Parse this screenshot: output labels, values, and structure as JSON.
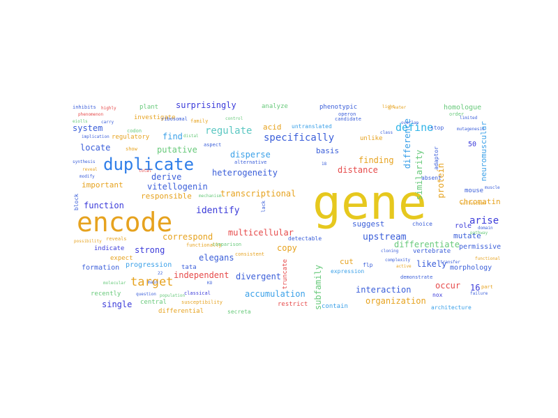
{
  "words": [
    {
      "t": "gene",
      "c": "#e6c81e"
    },
    {
      "t": "encode",
      "c": "#e6a21e"
    },
    {
      "t": "duplicate",
      "c": "#2f7ee8"
    },
    {
      "t": "target",
      "c": "#e6a21e"
    },
    {
      "t": "define",
      "c": "#2fb4e8"
    },
    {
      "t": "specifically",
      "c": "#3a5ed9"
    },
    {
      "t": "regulate",
      "c": "#5bc7c2"
    },
    {
      "t": "surprisingly",
      "c": "#3a3ad9"
    },
    {
      "t": "system",
      "c": "#3a5ed9"
    },
    {
      "t": "locate",
      "c": "#3a5ed9"
    },
    {
      "t": "putative",
      "c": "#67c97a"
    },
    {
      "t": "disperse",
      "c": "#3aa0e8"
    },
    {
      "t": "vitellogenin",
      "c": "#3a5ed9"
    },
    {
      "t": "heterogeneity",
      "c": "#3a5ed9"
    },
    {
      "t": "identify",
      "c": "#3a3ad9"
    },
    {
      "t": "transcriptional",
      "c": "#e6a21e"
    },
    {
      "t": "responsible",
      "c": "#e6a21e"
    },
    {
      "t": "function",
      "c": "#3a3ad9"
    },
    {
      "t": "correspond",
      "c": "#e6a21e"
    },
    {
      "t": "multicellular",
      "c": "#e64a4a"
    },
    {
      "t": "upstream",
      "c": "#3a5ed9"
    },
    {
      "t": "differentiate",
      "c": "#67c97a"
    },
    {
      "t": "strong",
      "c": "#3a3ad9"
    },
    {
      "t": "elegans",
      "c": "#3a5ed9"
    },
    {
      "t": "independent",
      "c": "#e64a4a"
    },
    {
      "t": "divergent",
      "c": "#3a5ed9"
    },
    {
      "t": "accumulation",
      "c": "#3aa0e8"
    },
    {
      "t": "interaction",
      "c": "#3a5ed9"
    },
    {
      "t": "organization",
      "c": "#e6a21e"
    },
    {
      "t": "single",
      "c": "#3a3ad9"
    },
    {
      "t": "occur",
      "c": "#e64a4a"
    },
    {
      "t": "arise",
      "c": "#3a3ad9"
    },
    {
      "t": "likely",
      "c": "#3a5ed9"
    },
    {
      "t": "distance",
      "c": "#e64a4a"
    },
    {
      "t": "finding",
      "c": "#e6a21e"
    },
    {
      "t": "basis",
      "c": "#3a5ed9"
    },
    {
      "t": "derive",
      "c": "#3a5ed9"
    },
    {
      "t": "important",
      "c": "#e6a21e"
    },
    {
      "t": "find",
      "c": "#3aa0e8"
    },
    {
      "t": "acid",
      "c": "#e6a21e"
    },
    {
      "t": "copy",
      "c": "#e6a21e"
    },
    {
      "t": "cut",
      "c": "#e6a21e"
    },
    {
      "t": "suggest",
      "c": "#3a5ed9"
    },
    {
      "t": "subfamily",
      "c": "#67c97a"
    },
    {
      "t": "similarity",
      "c": "#67c97a"
    },
    {
      "t": "difference",
      "c": "#3aa0e8"
    },
    {
      "t": "protein",
      "c": "#e6a21e"
    },
    {
      "t": "chromatin",
      "c": "#e6a21e"
    },
    {
      "t": "neuromuscular",
      "c": "#3aa0e8"
    },
    {
      "t": "homologue",
      "c": "#67c97a"
    },
    {
      "t": "mutate",
      "c": "#3a5ed9"
    },
    {
      "t": "role",
      "c": "#3a3ad9"
    },
    {
      "t": "permissive",
      "c": "#3a5ed9"
    },
    {
      "t": "morphology",
      "c": "#3a5ed9"
    },
    {
      "t": "16",
      "c": "#3a3ad9"
    },
    {
      "t": "50",
      "c": "#3a3ad9"
    },
    {
      "t": "mouse",
      "c": "#3a5ed9"
    },
    {
      "t": "formation",
      "c": "#3a5ed9"
    },
    {
      "t": "progression",
      "c": "#3aa0e8"
    },
    {
      "t": "central",
      "c": "#67c97a"
    },
    {
      "t": "recently",
      "c": "#67c97a"
    },
    {
      "t": "regulatory",
      "c": "#e6a21e"
    },
    {
      "t": "investigate",
      "c": "#e6a21e"
    },
    {
      "t": "plant",
      "c": "#67c97a"
    },
    {
      "t": "analyze",
      "c": "#67c97a"
    },
    {
      "t": "phenotypic",
      "c": "#3a5ed9"
    },
    {
      "t": "untranslated",
      "c": "#3aa0e8"
    },
    {
      "t": "unlike",
      "c": "#e6a21e"
    },
    {
      "t": "restrict",
      "c": "#e64a4a"
    },
    {
      "t": "contain",
      "c": "#3aa0e8"
    },
    {
      "t": "tata",
      "c": "#3a5ed9"
    },
    {
      "t": "indicate",
      "c": "#3a3ad9"
    },
    {
      "t": "expect",
      "c": "#e6a21e"
    },
    {
      "t": "differential",
      "c": "#e6a21e"
    },
    {
      "t": "vertebrate",
      "c": "#3a5ed9"
    },
    {
      "t": "choice",
      "c": "#3a5ed9"
    },
    {
      "t": "flp",
      "c": "#3a5ed9"
    },
    {
      "t": "expression",
      "c": "#3aa0e8"
    },
    {
      "t": "detectable",
      "c": "#3a5ed9"
    },
    {
      "t": "comparison",
      "c": "#67c97a"
    },
    {
      "t": "truncate",
      "c": "#e64a4a"
    },
    {
      "t": "block",
      "c": "#3a5ed9"
    },
    {
      "t": "adaptor",
      "c": "#3a5ed9"
    },
    {
      "t": "architecture",
      "c": "#3aa0e8"
    },
    {
      "t": "nox",
      "c": "#3a3ad9"
    },
    {
      "t": "part",
      "c": "#e6a21e"
    },
    {
      "t": "stop",
      "c": "#3a5ed9"
    },
    {
      "t": "absent",
      "c": "#3a5ed9"
    },
    {
      "t": "reveals",
      "c": "#e6a21e"
    },
    {
      "t": "consistent",
      "c": "#e6a21e"
    },
    {
      "t": "secreta",
      "c": "#67c97a"
    },
    {
      "t": "classical",
      "c": "#3a3ad9"
    },
    {
      "t": "susceptibility",
      "c": "#e6a21e"
    },
    {
      "t": "alternative",
      "c": "#3a5ed9"
    },
    {
      "t": "aspect",
      "c": "#3a5ed9"
    },
    {
      "t": "family",
      "c": "#e6a21e"
    },
    {
      "t": "control",
      "c": "#67c97a"
    },
    {
      "t": "operon",
      "c": "#3a5ed9"
    },
    {
      "t": "candidate",
      "c": "#3a5ed9"
    },
    {
      "t": "inhibits",
      "c": "#3a5ed9"
    },
    {
      "t": "highly",
      "c": "#e64a4a"
    },
    {
      "t": "ribosomal",
      "c": "#3a5ed9"
    },
    {
      "t": "codon",
      "c": "#67c97a"
    },
    {
      "t": "distal",
      "c": "#67c97a"
    },
    {
      "t": "show",
      "c": "#e6a21e"
    },
    {
      "t": "lack",
      "c": "#3a5ed9"
    },
    {
      "t": "functionally",
      "c": "#e6a21e"
    },
    {
      "t": "order",
      "c": "#67c97a"
    },
    {
      "t": "limited",
      "c": "#3a5ed9"
    },
    {
      "t": "functional",
      "c": "#e6a21e"
    },
    {
      "t": "molecular",
      "c": "#67c97a"
    },
    {
      "t": "main",
      "c": "#3a5ed9"
    },
    {
      "t": "demonstrate",
      "c": "#3a5ed9"
    },
    {
      "t": "possibility",
      "c": "#e6a21e"
    },
    {
      "t": "phenomenon",
      "c": "#e64a4a"
    },
    {
      "t": "eiolls",
      "c": "#67c97a"
    },
    {
      "t": "carry",
      "c": "#3a5ed9"
    },
    {
      "t": "implication",
      "c": "#3a5ed9"
    },
    {
      "t": "synthesis",
      "c": "#3a5ed9"
    },
    {
      "t": "modify",
      "c": "#3a5ed9"
    },
    {
      "t": "total",
      "c": "#e64a4a"
    },
    {
      "t": "reveal",
      "c": "#e6a21e"
    },
    {
      "t": "18",
      "c": "#3a5ed9"
    },
    {
      "t": "22",
      "c": "#3a5ed9"
    },
    {
      "t": "KO",
      "c": "#3a5ed9"
    },
    {
      "t": "mutagenesis",
      "c": "#3a5ed9"
    },
    {
      "t": "failure",
      "c": "#3a5ed9"
    },
    {
      "t": "greater",
      "c": "#e6a21e"
    },
    {
      "t": "light",
      "c": "#e6a21e"
    },
    {
      "t": "overlap",
      "c": "#3a5ed9"
    },
    {
      "t": "class",
      "c": "#3a5ed9"
    },
    {
      "t": "muscle",
      "c": "#3a5ed9"
    },
    {
      "t": "cloning",
      "c": "#3a5ed9"
    },
    {
      "t": "active",
      "c": "#e6a21e"
    },
    {
      "t": "complexity",
      "c": "#3a5ed9"
    },
    {
      "t": "transfer",
      "c": "#3a5ed9"
    },
    {
      "t": "question",
      "c": "#3a5ed9"
    },
    {
      "t": "population",
      "c": "#67c97a"
    },
    {
      "t": "mechanism",
      "c": "#67c97a"
    },
    {
      "t": "collection",
      "c": "#e6a21e"
    },
    {
      "t": "domain",
      "c": "#3a5ed9"
    },
    {
      "t": "pathway",
      "c": "#67c97a"
    }
  ]
}
